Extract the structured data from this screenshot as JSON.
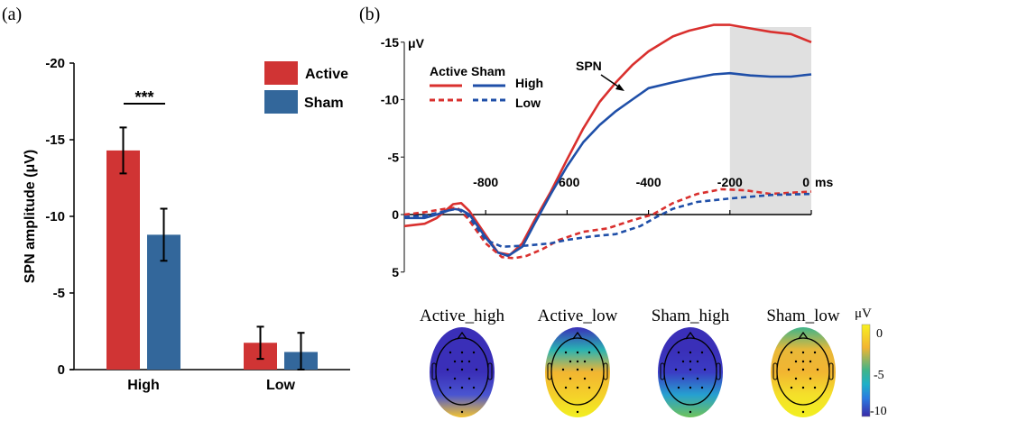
{
  "chart_data": [
    {
      "panel_label": "(a)",
      "type": "bar",
      "title": "",
      "xlabel": "",
      "ylabel": "SPN amplitude (μV)",
      "ylim": [
        0,
        -20
      ],
      "yticks": [
        "-20",
        "-15",
        "-10",
        "-5",
        "0"
      ],
      "ytick_values": [
        -20,
        -15,
        -10,
        -5,
        0
      ],
      "categories": [
        "High",
        "Low"
      ],
      "series": [
        {
          "name": "Active",
          "color": "#d03434",
          "values": [
            -14.3,
            -1.75
          ],
          "err_low": [
            -12.8,
            -0.7
          ],
          "err_high": [
            -15.8,
            -2.8
          ]
        },
        {
          "name": "Sham",
          "color": "#33679b",
          "values": [
            -8.8,
            -1.15
          ],
          "err_low": [
            -7.1,
            0
          ],
          "err_high": [
            -10.5,
            -2.4
          ]
        }
      ],
      "legend": "top-right",
      "annotations": [
        {
          "text": "***",
          "between": "High Active vs High Sham"
        }
      ]
    },
    {
      "panel_label": "(b)",
      "type": "line",
      "ylabel": "μV",
      "xlabel": "ms",
      "xlim": [
        -1000,
        0
      ],
      "ylim": [
        5,
        -15
      ],
      "xticks": [
        "-800",
        "-600",
        "-400",
        "-200",
        "0"
      ],
      "xtick_values": [
        -800,
        -600,
        -400,
        -200,
        0
      ],
      "yticks": [
        "-15",
        "-10",
        "-5",
        "0",
        "5"
      ],
      "ytick_values": [
        -15,
        -10,
        -5,
        0,
        5
      ],
      "shaded_window": [
        -200,
        0
      ],
      "legend": {
        "columns": [
          "Active",
          "Sham"
        ],
        "rows": [
          "High",
          "Low"
        ],
        "placement": "top-left"
      },
      "annotation": "SPN",
      "series": [
        {
          "name": "Active High",
          "color": "#d9302e",
          "dash": false,
          "x": [
            -1000,
            -950,
            -920,
            -880,
            -860,
            -840,
            -800,
            -770,
            -740,
            -710,
            -680,
            -640,
            -600,
            -560,
            -520,
            -480,
            -440,
            -400,
            -340,
            -300,
            -240,
            -200,
            -150,
            -100,
            -50,
            0
          ],
          "y": [
            1,
            0.8,
            0.3,
            -0.9,
            -1,
            -0.3,
            1.8,
            3.3,
            3.5,
            2.5,
            0.5,
            -2,
            -4.8,
            -7.5,
            -9.8,
            -11.5,
            -13,
            -14.2,
            -15.5,
            -16,
            -16.5,
            -16.5,
            -16.2,
            -15.9,
            -15.7,
            -15
          ]
        },
        {
          "name": "Sham High",
          "color": "#1f4fa8",
          "dash": false,
          "x": [
            -1000,
            -950,
            -920,
            -880,
            -860,
            -840,
            -800,
            -770,
            -745,
            -710,
            -680,
            -640,
            -600,
            -560,
            -520,
            -480,
            -440,
            -400,
            -340,
            -300,
            -240,
            -200,
            -150,
            -100,
            -50,
            0
          ],
          "y": [
            0.3,
            0.3,
            0,
            -0.5,
            -0.4,
            0,
            2,
            3.3,
            3.6,
            2.8,
            0.8,
            -1.8,
            -4.2,
            -6.3,
            -7.8,
            -9,
            -10,
            -11,
            -11.5,
            -11.8,
            -12.2,
            -12.3,
            -12.1,
            -12,
            -12,
            -12.2
          ]
        },
        {
          "name": "Active Low",
          "color": "#d9302e",
          "dash": true,
          "x": [
            -1000,
            -950,
            -900,
            -870,
            -845,
            -800,
            -760,
            -730,
            -700,
            -660,
            -620,
            -560,
            -500,
            -440,
            -390,
            -340,
            -280,
            -220,
            -160,
            -100,
            0
          ],
          "y": [
            0,
            -0.2,
            -0.5,
            -0.6,
            0.3,
            2.5,
            3.7,
            3.8,
            3.6,
            3,
            2.2,
            1.5,
            1.2,
            0.5,
            0,
            -1,
            -1.8,
            -2.2,
            -2.1,
            -1.8,
            -2
          ]
        },
        {
          "name": "Sham Low",
          "color": "#1f4fa8",
          "dash": true,
          "x": [
            -1000,
            -950,
            -900,
            -870,
            -845,
            -800,
            -760,
            -700,
            -640,
            -600,
            -540,
            -480,
            -420,
            -380,
            -340,
            -280,
            -200,
            -100,
            0
          ],
          "y": [
            0.2,
            0.1,
            -0.3,
            -0.5,
            0,
            2.2,
            2.8,
            2.7,
            2.5,
            2.2,
            1.9,
            1.7,
            1,
            0.2,
            -0.5,
            -1.1,
            -1.4,
            -1.7,
            -1.8
          ]
        }
      ]
    },
    {
      "type": "heatmap",
      "subtype": "topographic maps",
      "maps": [
        {
          "title": "Active_high",
          "colors": [
            "#3a2fb8",
            "#3a2fb8",
            "#3a2fb8",
            "#4a55d0",
            "#f4c430"
          ]
        },
        {
          "title": "Active_low",
          "colors": [
            "#3a2fb8",
            "#29b3b3",
            "#f2b531",
            "#f4d02a",
            "#f2ef20"
          ]
        },
        {
          "title": "Sham_high",
          "colors": [
            "#3a2fb8",
            "#3a2fb8",
            "#3b3cc4",
            "#26a0d0",
            "#6ec25a"
          ]
        },
        {
          "title": "Sham_low",
          "colors": [
            "#3fb48a",
            "#e8b838",
            "#f2b531",
            "#f4e02a",
            "#f2ef20"
          ]
        }
      ],
      "colorbar": {
        "label": "μV",
        "ticks": [
          "0",
          "-5",
          "-10"
        ],
        "range": [
          -10,
          0
        ]
      }
    }
  ]
}
